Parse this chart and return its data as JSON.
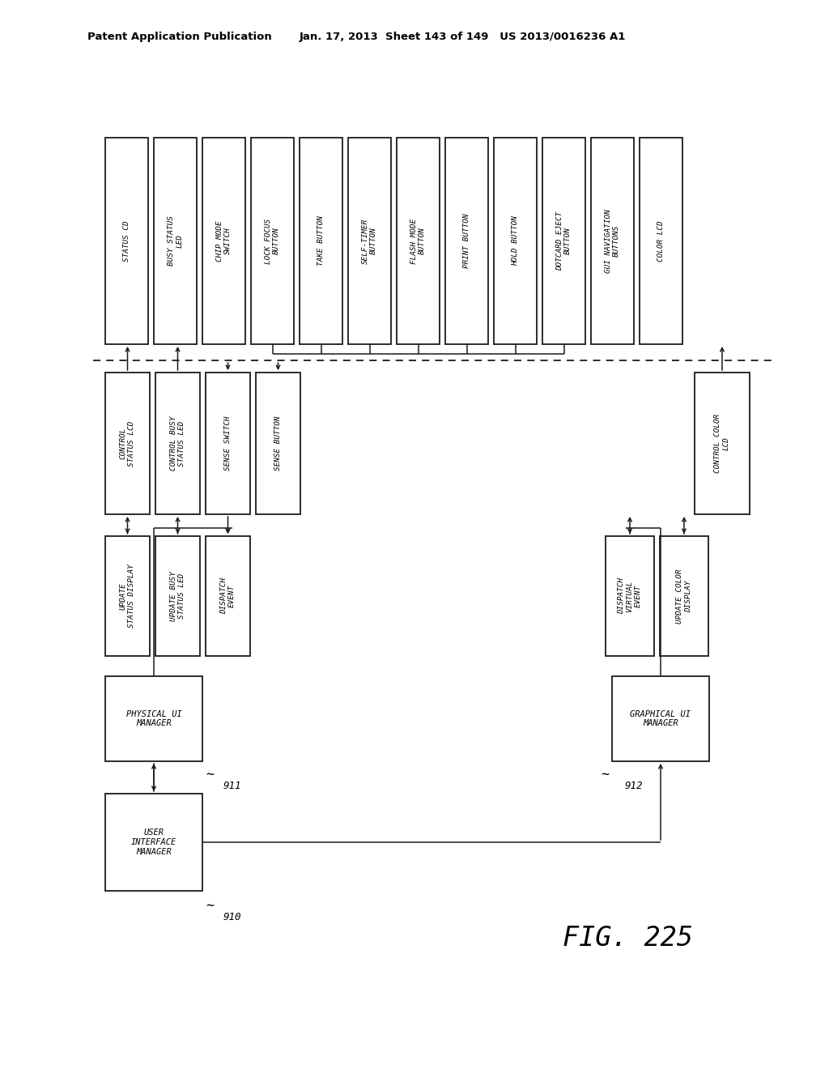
{
  "header_left": "Patent Application Publication",
  "header_right": "Jan. 17, 2013  Sheet 143 of 149   US 2013/0016236 A1",
  "fig_label": "FIG. 225",
  "top_boxes": [
    "STATUS CD",
    "BUSY STATUS\nLED",
    "CHIP MODE\nSWITCH",
    "LOCK FOCUS\nBUTTON",
    "TAKE BUTTON",
    "SELF-TIMER\nBUTTON",
    "FLASH MODE\nBUTTON",
    "PRINT BUTTON",
    "HOLD BUTTON",
    "DOTCARD EJECT\nBUTTON",
    "GUI NAVIGATION\nBUTTONS",
    "COLOR LCD"
  ],
  "mid_left_boxes": [
    "CONTROL\nSTATUS LCD",
    "CONTROL BUSY\nSTATUS LED",
    "SENSE SWITCH",
    "SENSE BUTTON"
  ],
  "mid_right_box": "CONTROL COLOR\nLCD",
  "left_group": [
    "UPDATE\nSTATUS DISPLAY",
    "UPDATE BUSY\nSTATUS LED",
    "DISPATCH\nEVENT"
  ],
  "right_group": [
    "DISPATCH\nVIRTUAL\nEVENT",
    "UPDATE COLOR\nDISPLAY"
  ],
  "phys_manager": "PHYSICAL UI\nMANAGER",
  "phys_label": "911",
  "graph_manager": "GRAPHICAL UI\nMANAGER",
  "graph_label": "912",
  "ui_manager": "USER\nINTERFACE\nMANAGER",
  "ui_label": "910"
}
